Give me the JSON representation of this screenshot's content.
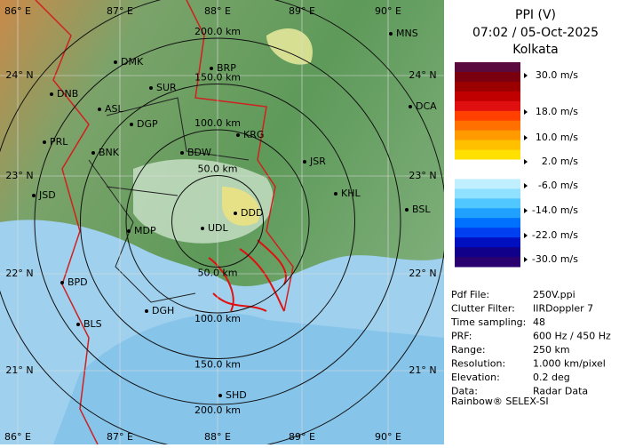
{
  "title": {
    "mode": "PPI (V)",
    "time": "07:02 / 05-Oct-2025",
    "station": "Kolkata"
  },
  "legend": {
    "labels": [
      "30.0 m/s",
      "18.0 m/s",
      "10.0 m/s",
      "2.0 m/s",
      "-6.0 m/s",
      "-14.0 m/s",
      "-22.0 m/s",
      "-30.0 m/s"
    ]
  },
  "info": {
    "rows": [
      [
        "Pdf File:",
        "250V.ppi"
      ],
      [
        "Clutter Filter:",
        "IIRDoppler 7"
      ],
      [
        "Time sampling:",
        "48"
      ],
      [
        "PRF:",
        "600 Hz / 450 Hz"
      ],
      [
        "Range:",
        "250 km"
      ],
      [
        "Resolution:",
        "1.000 km/pixel"
      ],
      [
        "Elevation:",
        "0.2 deg"
      ],
      [
        "Data:",
        "Radar Data"
      ]
    ]
  },
  "footer": "Rainbow® SELEX-SI",
  "map": {
    "lon_labels": [
      "86° E",
      "87° E",
      "88° E",
      "89° E",
      "90° E"
    ],
    "lat_labels": [
      "24° N",
      "23° N",
      "22° N",
      "21° N"
    ],
    "range_labels": [
      "50.0 km",
      "100.0 km",
      "150.0 km",
      "200.0 km"
    ],
    "stations": [
      "MNS",
      "DMK",
      "BRP",
      "SUR",
      "DNB",
      "ASL",
      "DGP",
      "DCA",
      "KRG",
      "PRL",
      "BNK",
      "BDW",
      "JSR",
      "KHL",
      "JSD",
      "BSL",
      "DDD",
      "UDL",
      "MDP",
      "BPD",
      "DGH",
      "BLS",
      "SHD"
    ]
  }
}
